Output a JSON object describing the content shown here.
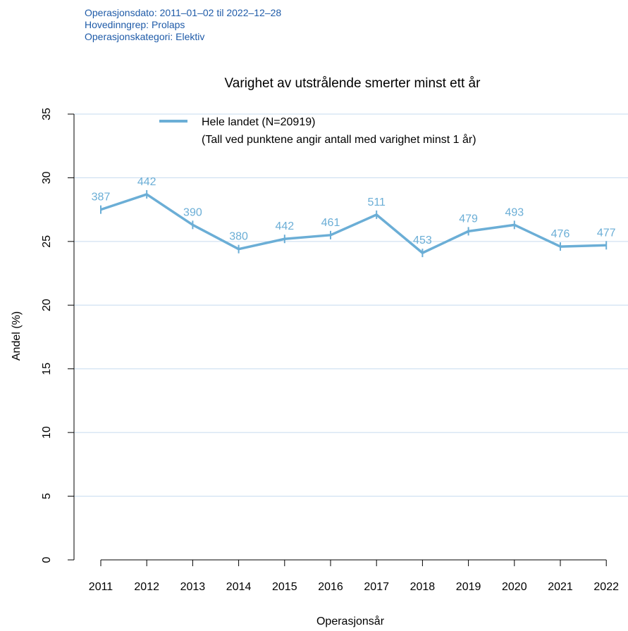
{
  "header": {
    "lines": [
      "Operasjonsdato: 2011–01–02 til 2022–12–28",
      "Hovedinngrep: Prolaps",
      "Operasjonskategori: Elektiv"
    ]
  },
  "colors": {
    "header_text": "#1f5ba8",
    "series": "#6baed6",
    "gridline": "#c6dbef",
    "axis": "#000000"
  },
  "chart_data": {
    "type": "line",
    "title": "Varighet av utstrålende smerter minst ett år",
    "xlabel": "Operasjonsår",
    "ylabel": "Andel (%)",
    "ylim": [
      0,
      35
    ],
    "yticks": [
      0,
      5,
      10,
      15,
      20,
      25,
      30,
      35
    ],
    "grid": true,
    "legend_position": "top-left",
    "legend": {
      "label": "Hele landet (N=20919)",
      "note": "(Tall ved punktene angir antall med varighet minst 1 år)"
    },
    "categories": [
      "2011",
      "2012",
      "2013",
      "2014",
      "2015",
      "2016",
      "2017",
      "2018",
      "2019",
      "2020",
      "2021",
      "2022"
    ],
    "series": [
      {
        "name": "Hele landet (N=20919)",
        "values": [
          27.5,
          28.7,
          26.3,
          24.4,
          25.2,
          25.5,
          27.1,
          24.1,
          25.8,
          26.3,
          24.6,
          24.7
        ],
        "point_labels": [
          "387",
          "442",
          "390",
          "380",
          "442",
          "461",
          "511",
          "453",
          "479",
          "493",
          "476",
          "477"
        ]
      }
    ]
  }
}
